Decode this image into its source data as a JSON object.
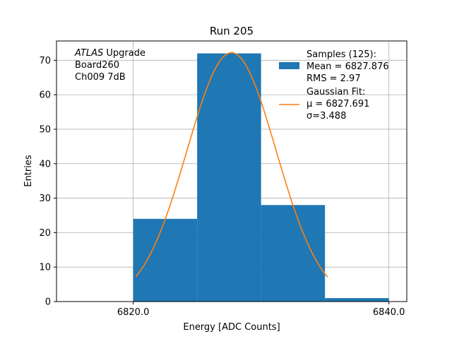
{
  "chart_data": {
    "type": "bar",
    "title": "Run 205",
    "xlabel": "Energy [ADC Counts]",
    "ylabel": "Entries",
    "xlim": [
      6814.0,
      6841.4
    ],
    "ylim": [
      0,
      75.6
    ],
    "x_ticks": [
      6820.0,
      6840.0
    ],
    "x_tick_labels": [
      "6820.0",
      "6840.0"
    ],
    "y_ticks": [
      0,
      10,
      20,
      30,
      40,
      50,
      60,
      70
    ],
    "y_tick_labels": [
      "0",
      "10",
      "20",
      "30",
      "40",
      "50",
      "60",
      "70"
    ],
    "grid": true,
    "histogram": {
      "bin_edges": [
        6820,
        6825,
        6830,
        6835,
        6840
      ],
      "counts": [
        24,
        72,
        28,
        1
      ],
      "color": "#1f77b4"
    },
    "gaussian_fit": {
      "mu": 6827.691,
      "sigma": 3.488,
      "amplitude": 72.2,
      "x_range": [
        6820.2,
        6835.2
      ],
      "color": "#ff7f0e"
    },
    "annotation_lines": [
      {
        "italic": "ATLAS",
        "normal": " Upgrade"
      },
      {
        "italic": "",
        "normal": " Board260"
      },
      {
        "italic": "",
        "normal": " Ch009 7dB"
      }
    ],
    "legend": {
      "location": "upper right",
      "histogram_lines": [
        "Samples (125):",
        " Mean = 6827.876",
        " RMS = 2.97"
      ],
      "fit_lines": [
        "Gaussian Fit:",
        " μ = 6827.691",
        " σ=3.488"
      ]
    }
  }
}
